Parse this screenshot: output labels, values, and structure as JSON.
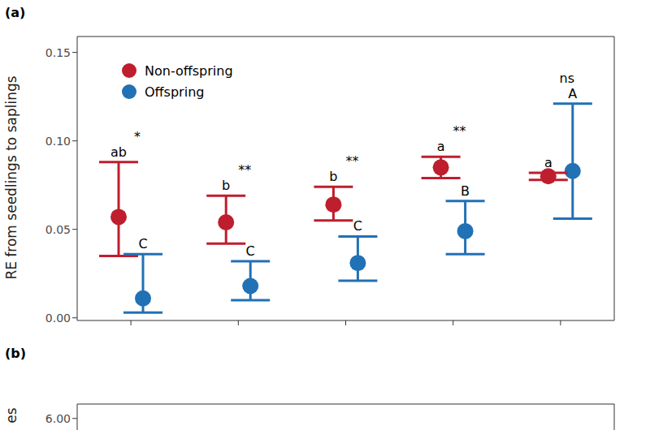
{
  "chart_data": [
    {
      "type": "scatter",
      "title": "(a)",
      "y_label": "RE from seedlings to saplings",
      "categories": [
        null,
        null,
        null,
        null,
        null
      ],
      "ylim": [
        -0.0015,
        0.159
      ],
      "yticks": [
        {
          "value": 0,
          "label": "0.00"
        },
        {
          "value": 0.05,
          "label": "0.05"
        },
        {
          "value": 0.1,
          "label": "0.10"
        },
        {
          "value": 0.15,
          "label": "0.15"
        }
      ],
      "legend": "upper left",
      "series": [
        {
          "name": "Non-offspring",
          "color": "#BE1E2D",
          "marker": "circle",
          "values": [
            0.057,
            0.054,
            0.064,
            0.085,
            0.08
          ],
          "lower": [
            0.035,
            0.042,
            0.055,
            0.079,
            0.078
          ],
          "upper": [
            0.088,
            0.069,
            0.074,
            0.091,
            0.082
          ],
          "letters": [
            "ab",
            "b",
            "b",
            "a",
            "a"
          ]
        },
        {
          "name": "Offspring",
          "color": "#2171B5",
          "marker": "circle",
          "values": [
            0.011,
            0.018,
            0.031,
            0.049,
            0.083
          ],
          "lower": [
            0.003,
            0.01,
            0.021,
            0.036,
            0.056
          ],
          "upper": [
            0.036,
            0.032,
            0.046,
            0.066,
            0.121
          ],
          "letters": [
            "C",
            "C",
            "C",
            "B",
            "A"
          ]
        }
      ],
      "significance": [
        "*",
        "**",
        "**",
        "**",
        "ns"
      ]
    },
    {
      "type": "scatter",
      "title": "(b)",
      "y_label": "es",
      "ylim": [
        5.8,
        6.25
      ],
      "yticks": [
        {
          "value": 6,
          "label": "6.00"
        }
      ]
    }
  ]
}
